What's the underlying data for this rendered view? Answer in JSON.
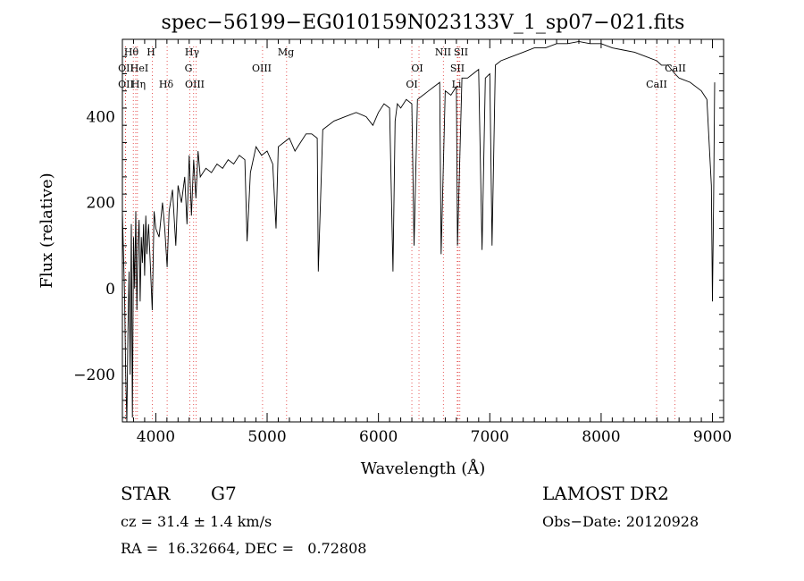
{
  "chart_data": {
    "type": "line",
    "title": "spec−56199−EG010159N023133V_1_sp07−021.fits",
    "xlabel": "Wavelength (Å)",
    "ylabel": "Flux (relative)",
    "xlim": [
      3700,
      9100
    ],
    "ylim": [
      -310,
      580
    ],
    "x_ticks": [
      4000,
      5000,
      6000,
      7000,
      8000,
      9000
    ],
    "y_ticks": [
      -200,
      0,
      200,
      400
    ],
    "grid": false,
    "series": [
      {
        "x": [
          3700,
          3720,
          3730,
          3740,
          3750,
          3760,
          3770,
          3780,
          3790,
          3800,
          3810,
          3820,
          3830,
          3840,
          3850,
          3860,
          3870,
          3880,
          3890,
          3900,
          3910,
          3920,
          3935,
          3950,
          3968,
          3985,
          4000,
          4030,
          4060,
          4080,
          4102,
          4120,
          4150,
          4180,
          4200,
          4230,
          4260,
          4280,
          4300,
          4320,
          4340,
          4360,
          4380,
          4400,
          4450,
          4500,
          4550,
          4600,
          4650,
          4700,
          4750,
          4800,
          4820,
          4850,
          4900,
          4950,
          5000,
          5050,
          5080,
          5100,
          5150,
          5200,
          5250,
          5300,
          5350,
          5400,
          5450,
          5460,
          5500,
          5600,
          5700,
          5800,
          5890,
          5950,
          6000,
          6050,
          6100,
          6130,
          6150,
          6170,
          6200,
          6250,
          6300,
          6320,
          6350,
          6400,
          6450,
          6500,
          6550,
          6563,
          6600,
          6650,
          6700,
          6710,
          6750,
          6800,
          6850,
          6900,
          6930,
          6960,
          7000,
          7020,
          7050,
          7100,
          7200,
          7300,
          7400,
          7500,
          7600,
          7700,
          7800,
          7900,
          8000,
          8100,
          8200,
          8300,
          8400,
          8500,
          8542,
          8600,
          8662,
          8700,
          8800,
          8900,
          8950,
          8990,
          9000,
          9010,
          9020
        ],
        "y": [
          180,
          -20,
          -200,
          -310,
          -100,
          40,
          -200,
          150,
          -300,
          120,
          0,
          180,
          -50,
          100,
          160,
          -30,
          120,
          60,
          150,
          30,
          170,
          80,
          150,
          60,
          -50,
          180,
          140,
          120,
          200,
          140,
          50,
          180,
          230,
          100,
          240,
          200,
          260,
          150,
          310,
          170,
          300,
          210,
          320,
          260,
          280,
          270,
          290,
          280,
          300,
          290,
          310,
          300,
          110,
          270,
          330,
          310,
          320,
          290,
          140,
          330,
          340,
          350,
          320,
          340,
          360,
          360,
          350,
          40,
          370,
          390,
          400,
          410,
          400,
          380,
          410,
          430,
          420,
          40,
          390,
          430,
          420,
          440,
          430,
          100,
          440,
          450,
          460,
          470,
          480,
          80,
          460,
          450,
          470,
          100,
          490,
          490,
          500,
          510,
          90,
          490,
          500,
          100,
          520,
          530,
          540,
          550,
          560,
          560,
          570,
          570,
          575,
          570,
          570,
          560,
          555,
          550,
          540,
          530,
          520,
          520,
          500,
          490,
          480,
          460,
          440,
          240,
          -30,
          200,
          480
        ]
      }
    ],
    "lines": [
      {
        "label": "Hθ",
        "x": 3798
      },
      {
        "label": "OII",
        "x": 3727
      },
      {
        "label": "OII",
        "x": 3729
      },
      {
        "label": "HeI",
        "x": 3820
      },
      {
        "label": "Hη",
        "x": 3835
      },
      {
        "label": "H",
        "x": 3968
      },
      {
        "label": "Hδ",
        "x": 4102
      },
      {
        "label": "Hγ",
        "x": 4340
      },
      {
        "label": "G",
        "x": 4305
      },
      {
        "label": "OIII",
        "x": 4363
      },
      {
        "label": "OIII",
        "x": 4959
      },
      {
        "label": "Mg",
        "x": 5175
      },
      {
        "label": "OI",
        "x": 6300
      },
      {
        "label": "OI",
        "x": 6364
      },
      {
        "label": "NII",
        "x": 6583
      },
      {
        "label": "SII",
        "x": 6716
      },
      {
        "label": "SII",
        "x": 6731
      },
      {
        "label": "Li",
        "x": 6708
      },
      {
        "label": "CaII",
        "x": 8498
      },
      {
        "label": "CaII",
        "x": 8662
      }
    ]
  },
  "info": {
    "obj_class": "STAR",
    "subclass": "G7",
    "survey": "LAMOST DR2",
    "cz": "cz = 31.4 ± 1.4 km/s",
    "obs_date": "Obs−Date: 20120928",
    "radec": "RA =  16.32664, DEC =   0.72808"
  },
  "colors": {
    "line": "#000000",
    "marker": "#e03030"
  }
}
